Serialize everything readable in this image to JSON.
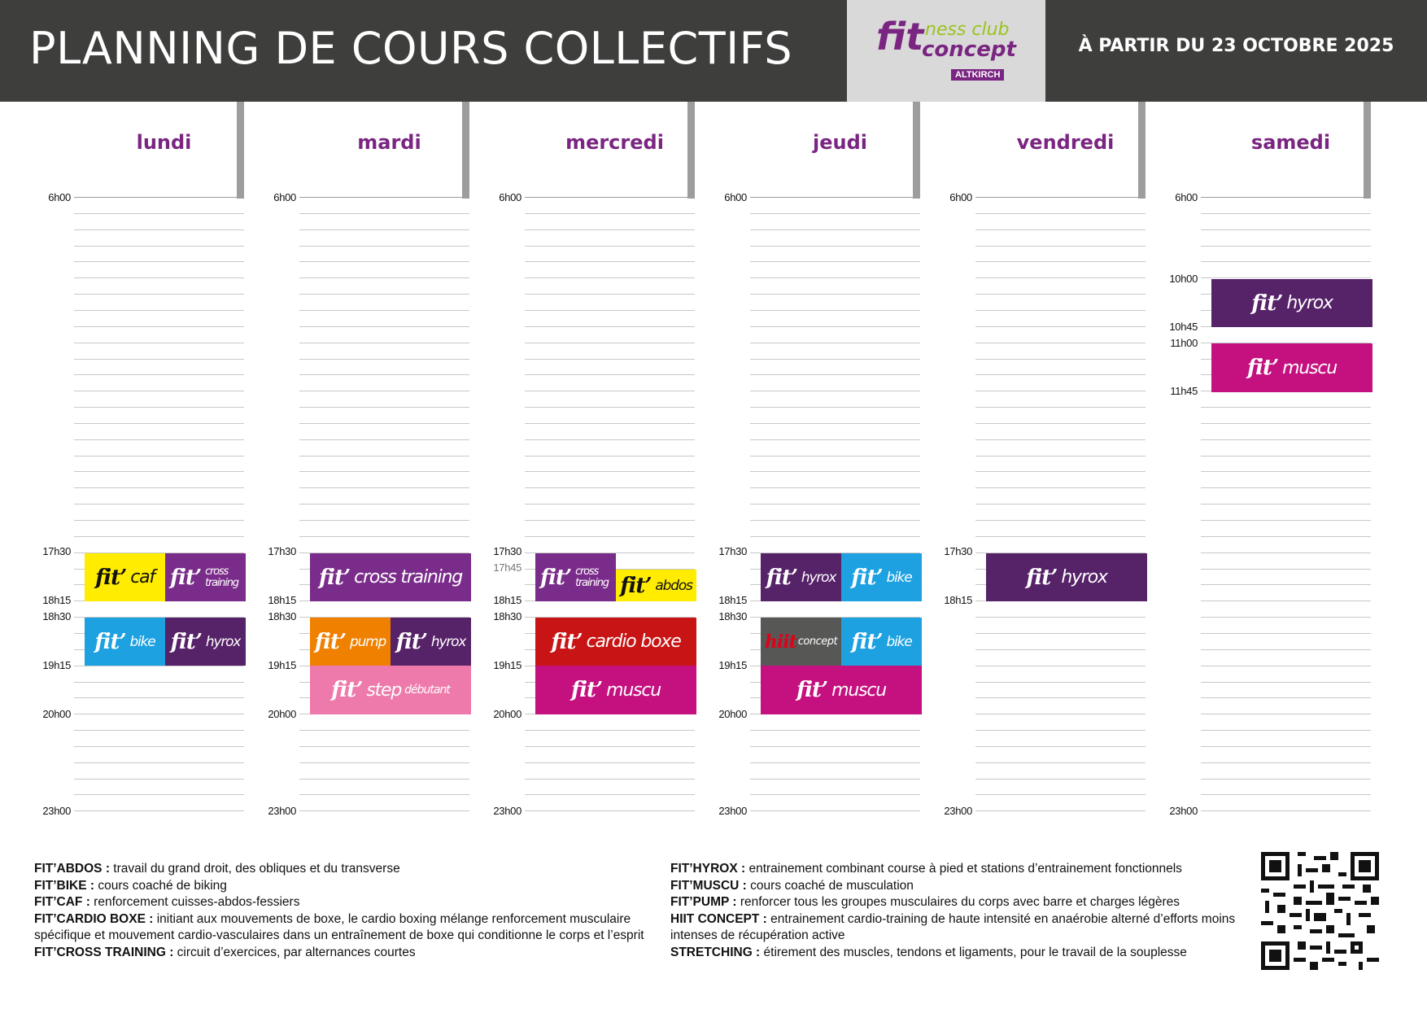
{
  "header": {
    "title": "PLANNING DE COURS COLLECTIFS",
    "logo_fit": "fit",
    "logo_ness": "ness club",
    "logo_concept": "concept",
    "logo_city": "ALTKIRCH",
    "date": "À PARTIR DU 23 OCTOBRE 2025"
  },
  "colors": {
    "header_bg": "#3e3e3d",
    "day_name": "#7a2581",
    "yellow": "#ffec00",
    "violet": "#7a2c8a",
    "dark_violet": "#562268",
    "blue": "#1da1e1",
    "orange": "#f08000",
    "pink": "#ee7aab",
    "red": "#c81414",
    "magenta": "#c4117f"
  },
  "days": [
    {
      "name": "lundi",
      "times": [
        "6h00",
        "17h30",
        "18h15",
        "18h30",
        "19h15",
        "20h00",
        "23h00"
      ]
    },
    {
      "name": "mardi",
      "times": [
        "6h00",
        "17h30",
        "18h15",
        "18h30",
        "19h15",
        "20h00",
        "23h00"
      ]
    },
    {
      "name": "mercredi",
      "times": [
        "6h00",
        "17h30",
        "17h45",
        "18h15",
        "18h30",
        "19h15",
        "20h00",
        "23h00"
      ]
    },
    {
      "name": "jeudi",
      "times": [
        "6h00",
        "17h30",
        "18h15",
        "18h30",
        "19h15",
        "20h00",
        "23h00"
      ]
    },
    {
      "name": "vendredi",
      "times": [
        "6h00",
        "17h30",
        "18h15",
        "23h00"
      ]
    },
    {
      "name": "samedi",
      "times": [
        "6h00",
        "10h00",
        "10h45",
        "11h00",
        "11h45",
        "23h00"
      ]
    }
  ],
  "classes": {
    "fit": "fit’",
    "caf": "caf",
    "cross": "cross training",
    "cross_small": "cross training",
    "bike": "bike",
    "hyrox": "hyrox",
    "pump": "pump",
    "step": "step",
    "step_sub": "débutant",
    "abdos": "abdos",
    "cardio": "cardio boxe",
    "muscu": "muscu",
    "hiit": "hiit",
    "hiit_concept": "concept"
  },
  "legend_left": [
    {
      "term": "FIT’ABDOS :",
      "desc": " travail du grand droit, des obliques et du transverse"
    },
    {
      "term": "FIT’BIKE :",
      "desc": " cours coaché de biking"
    },
    {
      "term": "FIT’CAF :",
      "desc": " renforcement cuisses-abdos-fessiers"
    },
    {
      "term": "FIT’CARDIO BOXE :",
      "desc": " initiant aux mouvements de boxe, le cardio boxing mélange renforcement musculaire spécifique et mouvement cardio-vasculaires dans un entraînement de boxe qui conditionne le corps et l’esprit"
    },
    {
      "term": "FIT’CROSS TRAINING :",
      "desc": " circuit d’exercices, par alternances courtes"
    }
  ],
  "legend_right": [
    {
      "term": "FIT’HYROX :",
      "desc": " entrainement combinant course à pied et stations d’entrainement fonctionnels"
    },
    {
      "term": "FIT’MUSCU :",
      "desc": " cours coaché de musculation"
    },
    {
      "term": "FIT’PUMP :",
      "desc": " renforcer tous les groupes musculaires du corps avec barre et charges légères"
    },
    {
      "term": "HIIT CONCEPT :",
      "desc": " entrainement cardio-training de haute intensité en anaérobie alterné d’efforts moins intenses de récupération active"
    },
    {
      "term": "STRETCHING :",
      "desc": " étirement des muscles, tendons et ligaments, pour le travail de la souplesse"
    }
  ]
}
